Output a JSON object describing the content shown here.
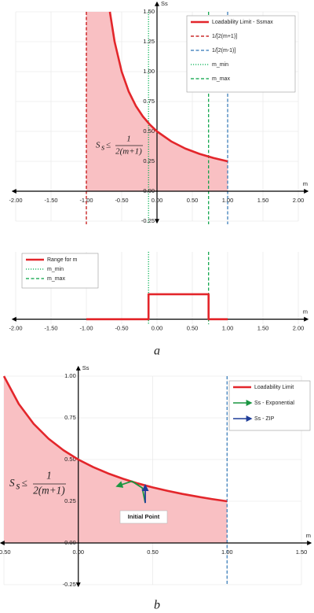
{
  "chart_data": [
    {
      "type": "line",
      "xlabel": "m",
      "ylabel": "Ss",
      "xlim": [
        -2,
        2
      ],
      "ylim": [
        -0.25,
        1.5
      ],
      "xticks": [
        {
          "value": -2,
          "label": "-2.00"
        },
        {
          "value": -1.5,
          "label": "-1.50"
        },
        {
          "value": -1,
          "label": "-1.00"
        },
        {
          "value": -0.5,
          "label": "-0.50"
        },
        {
          "value": 0,
          "label": "0.00"
        },
        {
          "value": 0.5,
          "label": "0.50"
        },
        {
          "value": 1,
          "label": "1.00"
        },
        {
          "value": 1.5,
          "label": "1.50"
        },
        {
          "value": 2,
          "label": "2.00"
        }
      ],
      "yticks": [
        {
          "value": -0.25,
          "label": "-0.25"
        },
        {
          "value": 0,
          "label": "0.00"
        },
        {
          "value": 0.25,
          "label": "0.25"
        },
        {
          "value": 0.5,
          "label": "0.50"
        },
        {
          "value": 0.75,
          "label": "0.75"
        },
        {
          "value": 1,
          "label": "1.00"
        },
        {
          "value": 1.25,
          "label": "1.25"
        },
        {
          "value": 1.5,
          "label": "1.50"
        }
      ],
      "grid": true,
      "shade_from": -1,
      "shade_color": "#f9c0c3",
      "formula": {
        "lhs": "S",
        "sub": "s",
        "rel": "≤",
        "num": "1",
        "den": "2(m+1)"
      },
      "series": [
        {
          "name": "Loadability Limit - Ssmax",
          "color": "#e3262b",
          "x": [
            -0.667,
            -0.6,
            -0.5,
            -0.4,
            -0.3,
            -0.2,
            -0.1,
            0,
            0.2,
            0.4,
            0.6,
            0.8,
            1.0
          ],
          "values": [
            1.5,
            1.25,
            1.0,
            0.833,
            0.714,
            0.625,
            0.556,
            0.5,
            0.417,
            0.357,
            0.3125,
            0.278,
            0.25
          ]
        }
      ],
      "vlines": [
        {
          "name": "1/[2(m+1)]",
          "x": -1,
          "color": "#c00000",
          "style": "dashed"
        },
        {
          "name": "1/[2(m-1)]",
          "x": 1,
          "color": "#2e75b6",
          "style": "dashed"
        },
        {
          "name": "m_min",
          "x": -0.12,
          "color": "#00b050",
          "style": "dotted"
        },
        {
          "name": "m_max",
          "x": 0.73,
          "color": "#00a040",
          "style": "dashed"
        }
      ]
    },
    {
      "type": "line",
      "xlabel": "m",
      "xlim": [
        -2,
        2
      ],
      "ylim": [
        -0.2,
        2.7
      ],
      "xticks": [
        {
          "value": -2,
          "label": "-2.00"
        },
        {
          "value": -1.5,
          "label": "-1.50"
        },
        {
          "value": -1,
          "label": "-1.00"
        },
        {
          "value": -0.5,
          "label": "-0.50"
        },
        {
          "value": 0,
          "label": "0.00"
        },
        {
          "value": 0.5,
          "label": "0.50"
        },
        {
          "value": 1,
          "label": "1.00"
        },
        {
          "value": 1.5,
          "label": "1.50"
        },
        {
          "value": 2,
          "label": "2.00"
        }
      ],
      "grid": true,
      "label": "a",
      "series": [
        {
          "name": "Range for m",
          "color": "#e3262b",
          "x": [
            -1,
            -0.12,
            -0.12,
            0.73,
            0.73,
            1
          ],
          "values": [
            0,
            0,
            1,
            1,
            0,
            0
          ]
        }
      ],
      "vlines": [
        {
          "name": "m_min",
          "x": -0.12,
          "color": "#00b050",
          "style": "dotted"
        },
        {
          "name": "m_max",
          "x": 0.73,
          "color": "#00a040",
          "style": "dashed"
        }
      ]
    },
    {
      "type": "line",
      "xlabel": "m",
      "ylabel": "Ss",
      "xlim": [
        -0.5,
        1.5
      ],
      "ylim": [
        -0.25,
        1.0
      ],
      "xticks": [
        {
          "value": -0.5,
          "label": "-0.50"
        },
        {
          "value": 0,
          "label": "0.00"
        },
        {
          "value": 0.5,
          "label": "0.50"
        },
        {
          "value": 1,
          "label": "1.00"
        },
        {
          "value": 1.5,
          "label": "1.50"
        }
      ],
      "yticks": [
        {
          "value": -0.25,
          "label": "-0.25"
        },
        {
          "value": 0,
          "label": "0.00"
        },
        {
          "value": 0.25,
          "label": "0.25"
        },
        {
          "value": 0.5,
          "label": "0.50"
        },
        {
          "value": 0.75,
          "label": "0.75"
        },
        {
          "value": 1,
          "label": "1.00"
        }
      ],
      "grid": true,
      "shade_from": -0.5,
      "shade_color": "#f9c0c3",
      "formula": {
        "lhs": "S",
        "sub": "s",
        "rel": "≤",
        "num": "1",
        "den": "2(m+1)"
      },
      "note": "Initial Point",
      "label": "b",
      "series": [
        {
          "name": "Loadability Limit",
          "color": "#e3262b",
          "x": [
            -0.5,
            -0.4,
            -0.3,
            -0.2,
            -0.1,
            0,
            0.1,
            0.2,
            0.3,
            0.4,
            0.5,
            0.6,
            0.7,
            0.8,
            0.9,
            1.0
          ],
          "values": [
            1.0,
            0.833,
            0.714,
            0.625,
            0.556,
            0.5,
            0.455,
            0.417,
            0.385,
            0.357,
            0.333,
            0.3125,
            0.294,
            0.278,
            0.263,
            0.25
          ]
        },
        {
          "name": "Ss - Exponential",
          "color": "#1a9641",
          "marker": "arrow",
          "x": [
            0.45,
            0.43,
            0.36,
            0.26
          ],
          "values": [
            0.24,
            0.33,
            0.37,
            0.34
          ]
        },
        {
          "name": "Ss - ZIP",
          "color": "#1f3d99",
          "marker": "arrow",
          "x": [
            0.45,
            0.45
          ],
          "values": [
            0.24,
            0.345
          ]
        }
      ],
      "vlines": [
        {
          "x": 1,
          "color": "#2e75b6",
          "style": "dashed"
        }
      ]
    }
  ]
}
